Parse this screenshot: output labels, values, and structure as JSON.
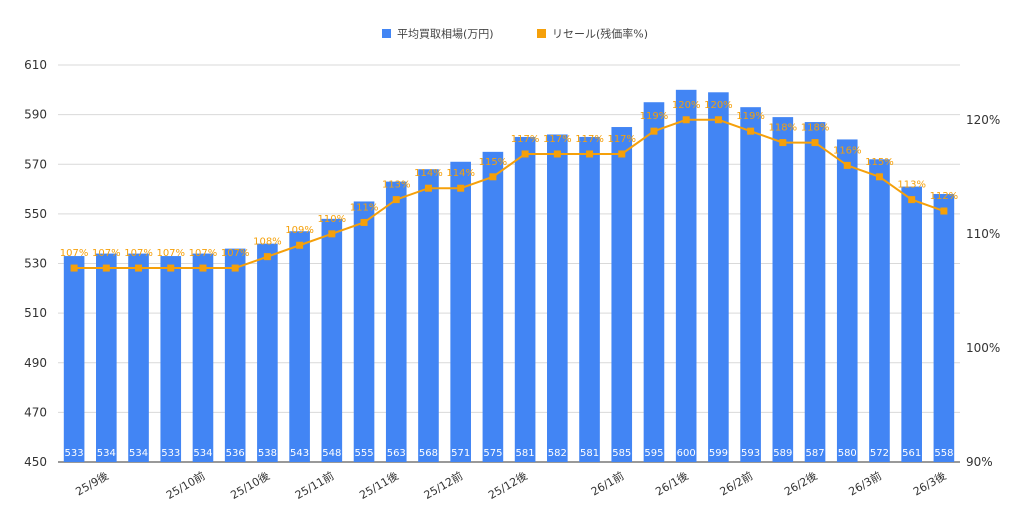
{
  "chart_data": {
    "type": "bar",
    "categories": [
      "",
      "25/9後",
      "",
      "",
      "25/10前",
      "",
      "25/10後",
      "",
      "25/11前",
      "",
      "25/11後",
      "",
      "25/12前",
      "",
      "25/12後",
      "",
      "",
      "26/1前",
      "",
      "26/1後",
      "",
      "26/2前",
      "",
      "26/2後",
      "",
      "26/3前",
      "",
      "26/3後"
    ],
    "series": [
      {
        "name": "平均買取相場(万円)",
        "type": "bar",
        "axis": "left",
        "color": "#4285f4",
        "values": [
          533,
          534,
          534,
          533,
          534,
          536,
          538,
          543,
          548,
          555,
          563,
          568,
          571,
          575,
          581,
          582,
          581,
          585,
          595,
          600,
          599,
          593,
          589,
          587,
          580,
          572,
          561,
          558
        ],
        "labels": [
          "533",
          "534",
          "534",
          "533",
          "534",
          "536",
          "538",
          "543",
          "548",
          "555",
          "563",
          "568",
          "571",
          "575",
          "581",
          "582",
          "581",
          "585",
          "595",
          "600",
          "599",
          "593",
          "589",
          "587",
          "580",
          "572",
          "561",
          "558"
        ]
      },
      {
        "name": "リセール(残価率%)",
        "type": "line",
        "axis": "right",
        "color": "#f5a00a",
        "values": [
          107,
          107,
          107,
          107,
          107,
          107,
          108,
          109,
          110,
          111,
          113,
          114,
          114,
          115,
          117,
          117,
          117,
          117,
          119,
          120,
          120,
          119,
          118,
          118,
          116,
          115,
          113,
          112
        ],
        "labels": [
          "107%",
          "107%",
          "107%",
          "107%",
          "107%",
          "107%",
          "108%",
          "109%",
          "110%",
          "111%",
          "113%",
          "114%",
          "114%",
          "115%",
          "117%",
          "117%",
          "117%",
          "117%",
          "119%",
          "120%",
          "120%",
          "119%",
          "118%",
          "118%",
          "116%",
          "115%",
          "113%",
          "112%"
        ]
      }
    ],
    "y_left": {
      "ylim": [
        450,
        610
      ],
      "ticks": [
        "450",
        "470",
        "490",
        "510",
        "530",
        "550",
        "570",
        "590",
        "610"
      ]
    },
    "y_right": {
      "ylim": [
        90,
        124.8
      ],
      "ticks": [
        "90%",
        "100%",
        "110%",
        "120%"
      ]
    },
    "grid": true,
    "legend": "top-center"
  }
}
